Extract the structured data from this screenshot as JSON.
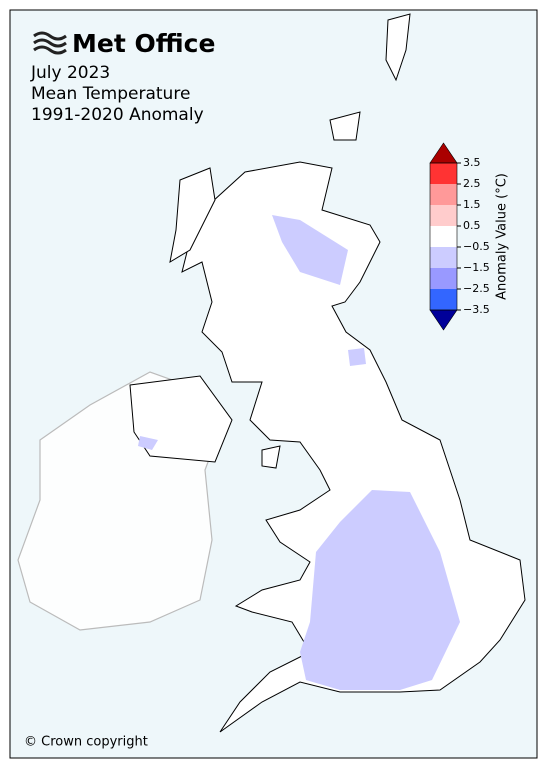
{
  "header": {
    "logo": "Met Office",
    "title_lines": [
      "July 2023",
      "Mean Temperature",
      "1991-2020 Anomaly"
    ]
  },
  "colorbar": {
    "label": "Anomaly Value (°C)",
    "ticks": [
      3.5,
      2.5,
      1.5,
      0.5,
      {
        "value": -0.5,
        "label": "−0.5"
      },
      {
        "value": -1.5,
        "label": "−1.5"
      },
      {
        "value": -2.5,
        "label": "−2.5"
      },
      {
        "value": -3.5,
        "label": "−3.5"
      }
    ],
    "colors": [
      "#ff3333",
      "#ff9999",
      "#ffcccc",
      "#ffffff",
      "#ccccff",
      "#9999ff",
      "#3366ff"
    ],
    "over_color": "#aa0000",
    "under_color": "#000099"
  },
  "footer": "© Crown copyright"
}
